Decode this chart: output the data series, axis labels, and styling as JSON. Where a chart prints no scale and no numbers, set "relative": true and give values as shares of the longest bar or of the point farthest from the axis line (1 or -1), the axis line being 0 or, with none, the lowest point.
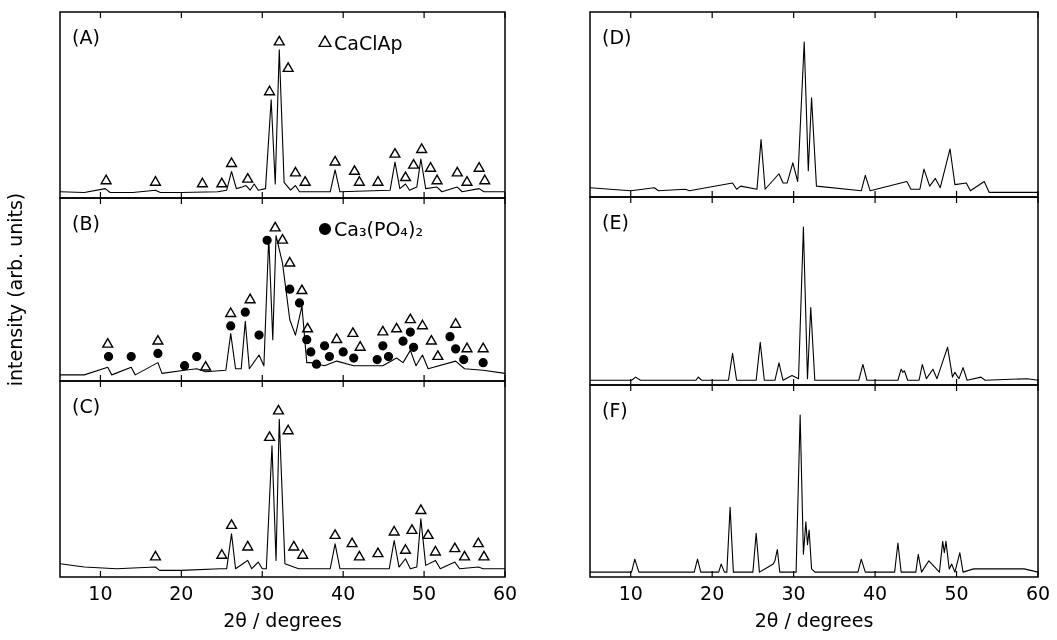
{
  "chart_data": [
    {
      "type": "line",
      "annotations": [
        "(A)"
      ],
      "xlim": [
        5,
        60
      ],
      "xticks": [
        10,
        20,
        30,
        40,
        50,
        60
      ],
      "tick_labels": false,
      "relative": true,
      "legend": "top right",
      "series": [
        {
          "type": "line",
          "color": "#000000",
          "x": [
            5,
            8,
            10.6,
            11.2,
            14,
            16.8,
            17.4,
            20,
            24.5,
            25.6,
            26.2,
            26.8,
            27.5,
            28.0,
            28.5,
            29.0,
            29.5,
            30.4,
            31.1,
            31.6,
            32.1,
            32.7,
            33.5,
            34.1,
            34.6,
            38.4,
            39.0,
            39.6,
            45.8,
            46.4,
            47.0,
            47.7,
            48.2,
            49.1,
            49.6,
            50.2,
            51.6,
            52.2,
            54.1,
            54.7,
            56.8,
            57.4,
            60
          ],
          "values": [
            0.04,
            0.035,
            0.06,
            0.035,
            0.035,
            0.05,
            0.035,
            0.035,
            0.04,
            0.05,
            0.17,
            0.06,
            0.07,
            0.08,
            0.05,
            0.09,
            0.05,
            0.06,
            0.63,
            0.09,
            0.95,
            0.1,
            0.05,
            0.08,
            0.04,
            0.04,
            0.18,
            0.04,
            0.05,
            0.23,
            0.06,
            0.09,
            0.05,
            0.07,
            0.25,
            0.06,
            0.07,
            0.04,
            0.07,
            0.04,
            0.06,
            0.04,
            0.04
          ]
        },
        {
          "type": "scatter",
          "name": "CaClAp",
          "marker": "triangle",
          "color": "#000000",
          "x": [
            10.7,
            16.8,
            22.6,
            25.0,
            26.2,
            28.2,
            30.9,
            32.1,
            33.2,
            34.1,
            35.3,
            39.0,
            41.4,
            42.0,
            44.3,
            46.4,
            47.7,
            48.7,
            49.7,
            50.8,
            51.6,
            54.1,
            55.3,
            56.8,
            57.5
          ],
          "values": [
            0.11,
            0.1,
            0.09,
            0.09,
            0.22,
            0.12,
            0.68,
            1.0,
            0.83,
            0.16,
            0.1,
            0.23,
            0.17,
            0.1,
            0.1,
            0.28,
            0.13,
            0.21,
            0.31,
            0.19,
            0.11,
            0.16,
            0.1,
            0.19,
            0.11
          ]
        }
      ]
    },
    {
      "type": "line",
      "annotations": [
        "(B)"
      ],
      "ylabel": "intensity (arb. units)",
      "xlim": [
        5,
        60
      ],
      "xticks": [
        10,
        20,
        30,
        40,
        50,
        60
      ],
      "tick_labels": false,
      "relative": true,
      "legend": "top right",
      "series": [
        {
          "type": "line",
          "color": "#000000",
          "x": [
            5,
            8,
            10.9,
            11.4,
            13.8,
            14.3,
            17.1,
            17.6,
            20.4,
            21.9,
            23,
            25.5,
            26.1,
            26.7,
            27.4,
            27.9,
            28.4,
            29.6,
            30.2,
            30.8,
            31.3,
            31.7,
            32.5,
            33.4,
            34.1,
            34.9,
            35.5,
            36.0,
            37.7,
            39.2,
            41.3,
            44.9,
            46.6,
            47.4,
            48.3,
            49.0,
            49.8,
            50.5,
            53.9,
            55,
            57.3,
            60
          ],
          "values": [
            0.04,
            0.04,
            0.09,
            0.04,
            0.09,
            0.04,
            0.12,
            0.05,
            0.07,
            0.08,
            0.06,
            0.07,
            0.31,
            0.08,
            0.08,
            0.39,
            0.08,
            0.17,
            0.1,
            0.94,
            0.27,
            0.95,
            0.77,
            0.4,
            0.3,
            0.49,
            0.12,
            0.12,
            0.1,
            0.13,
            0.1,
            0.1,
            0.15,
            0.12,
            0.2,
            0.1,
            0.17,
            0.08,
            0.13,
            0.08,
            0.07,
            0.05
          ]
        },
        {
          "type": "scatter",
          "marker": "triangle",
          "color": "#000000",
          "x": [
            10.9,
            17.1,
            23.0,
            26.1,
            28.5,
            31.6,
            32.5,
            33.4,
            34.9,
            35.6,
            39.2,
            41.2,
            42.1,
            44.9,
            46.6,
            48.3,
            49.8,
            50.9,
            51.7,
            53.9,
            55.3,
            57.3
          ],
          "values": [
            0.24,
            0.26,
            0.09,
            0.44,
            0.53,
            1.0,
            0.92,
            0.77,
            0.59,
            0.34,
            0.27,
            0.31,
            0.22,
            0.32,
            0.34,
            0.4,
            0.36,
            0.26,
            0.16,
            0.37,
            0.21,
            0.21
          ]
        },
        {
          "type": "scatter",
          "name": "Ca₃(PO₄)₂",
          "marker": "circle",
          "color": "#000000",
          "x": [
            11.0,
            13.8,
            17.1,
            20.4,
            21.9,
            26.1,
            27.9,
            29.6,
            30.6,
            33.4,
            34.6,
            35.5,
            36.0,
            36.7,
            37.7,
            38.3,
            40.0,
            41.3,
            44.2,
            44.9,
            45.6,
            47.4,
            48.3,
            48.7,
            53.2,
            53.9,
            54.9,
            57.3
          ],
          "values": [
            0.16,
            0.16,
            0.18,
            0.1,
            0.16,
            0.36,
            0.45,
            0.3,
            0.92,
            0.6,
            0.51,
            0.27,
            0.19,
            0.11,
            0.23,
            0.16,
            0.19,
            0.15,
            0.14,
            0.23,
            0.16,
            0.26,
            0.32,
            0.22,
            0.29,
            0.21,
            0.14,
            0.12
          ]
        }
      ]
    },
    {
      "type": "line",
      "annotations": [
        "(C)"
      ],
      "xlabel": "2θ / degrees",
      "xlim": [
        5,
        60
      ],
      "xticks": [
        10,
        20,
        30,
        40,
        50,
        60
      ],
      "tick_labels": "x",
      "relative": true,
      "series": [
        {
          "type": "line",
          "color": "#000000",
          "x": [
            5,
            8,
            12,
            16.8,
            17.3,
            20,
            24.8,
            25.6,
            26.2,
            26.7,
            27.6,
            28.2,
            28.7,
            29.5,
            30.0,
            30.5,
            31.2,
            31.7,
            32.1,
            32.8,
            33.9,
            34.5,
            38.4,
            39.0,
            39.6,
            45.7,
            46.3,
            46.9,
            47.7,
            48.3,
            49.1,
            49.6,
            50.2,
            51.4,
            52,
            53.8,
            54.4,
            56.7,
            57.3,
            60
          ],
          "values": [
            0.08,
            0.06,
            0.05,
            0.06,
            0.04,
            0.04,
            0.05,
            0.05,
            0.26,
            0.05,
            0.08,
            0.1,
            0.05,
            0.09,
            0.05,
            0.05,
            0.79,
            0.1,
            0.95,
            0.08,
            0.06,
            0.05,
            0.05,
            0.2,
            0.05,
            0.05,
            0.22,
            0.06,
            0.11,
            0.05,
            0.06,
            0.35,
            0.07,
            0.1,
            0.05,
            0.09,
            0.05,
            0.06,
            0.05,
            0.05
          ]
        },
        {
          "type": "scatter",
          "marker": "triangle",
          "color": "#000000",
          "x": [
            16.8,
            25.0,
            26.2,
            28.2,
            30.9,
            32.0,
            33.2,
            33.9,
            35.0,
            39.0,
            41.1,
            42.0,
            44.3,
            46.3,
            47.7,
            48.5,
            49.6,
            50.5,
            51.4,
            53.8,
            55.0,
            56.7,
            57.4
          ],
          "values": [
            0.12,
            0.13,
            0.31,
            0.18,
            0.84,
            1.0,
            0.88,
            0.18,
            0.13,
            0.25,
            0.2,
            0.12,
            0.14,
            0.27,
            0.16,
            0.28,
            0.4,
            0.25,
            0.15,
            0.17,
            0.12,
            0.2,
            0.12
          ]
        }
      ]
    },
    {
      "type": "line",
      "annotations": [
        "(D)"
      ],
      "xlim": [
        5,
        60
      ],
      "xticks": [
        10,
        20,
        30,
        40,
        50,
        60
      ],
      "tick_labels": false,
      "relative": true,
      "series": [
        {
          "type": "line",
          "color": "#000000",
          "x": [
            5,
            10,
            12.9,
            13.4,
            16.7,
            17.2,
            22.5,
            23.0,
            23.5,
            25.5,
            26.0,
            26.5,
            28.2,
            28.7,
            29.2,
            29.9,
            30.5,
            31.3,
            31.8,
            32.2,
            32.8,
            38.3,
            38.8,
            39.4,
            43.9,
            44.4,
            45.5,
            46.0,
            46.7,
            47.4,
            48.0,
            49.2,
            49.8,
            51.2,
            51.7,
            53.4,
            54.0,
            60
          ],
          "values": [
            0.06,
            0.04,
            0.06,
            0.04,
            0.05,
            0.04,
            0.09,
            0.05,
            0.07,
            0.05,
            0.37,
            0.05,
            0.15,
            0.09,
            0.09,
            0.22,
            0.1,
            1.0,
            0.17,
            0.64,
            0.07,
            0.04,
            0.14,
            0.04,
            0.1,
            0.05,
            0.05,
            0.18,
            0.07,
            0.12,
            0.06,
            0.31,
            0.08,
            0.09,
            0.04,
            0.1,
            0.03,
            0.03
          ]
        }
      ]
    },
    {
      "type": "line",
      "annotations": [
        "(E)"
      ],
      "xlim": [
        5,
        60
      ],
      "xticks": [
        10,
        20,
        30,
        40,
        50,
        60
      ],
      "tick_labels": false,
      "relative": true,
      "series": [
        {
          "type": "line",
          "color": "#000000",
          "x": [
            5,
            10.1,
            10.6,
            11.2,
            18.0,
            18.3,
            18.7,
            22.0,
            22.5,
            23.0,
            25.4,
            25.9,
            26.4,
            27.7,
            28.2,
            28.7,
            29.8,
            30.6,
            31.2,
            31.7,
            32.1,
            32.6,
            38.0,
            38.5,
            39.0,
            42.8,
            43.2,
            43.4,
            43.6,
            44.0,
            45.4,
            45.8,
            46.3,
            47.1,
            47.6,
            48.9,
            49.5,
            49.8,
            50.3,
            50.8,
            51.3,
            53.0,
            53.5,
            58.7,
            60
          ],
          "values": [
            0.03,
            0.03,
            0.05,
            0.03,
            0.03,
            0.05,
            0.03,
            0.03,
            0.2,
            0.03,
            0.03,
            0.27,
            0.03,
            0.03,
            0.14,
            0.03,
            0.06,
            0.04,
            1.0,
            0.04,
            0.49,
            0.03,
            0.03,
            0.13,
            0.03,
            0.03,
            0.1,
            0.08,
            0.09,
            0.03,
            0.03,
            0.13,
            0.04,
            0.1,
            0.04,
            0.24,
            0.05,
            0.08,
            0.04,
            0.11,
            0.03,
            0.05,
            0.03,
            0.04,
            0.03
          ]
        }
      ]
    },
    {
      "type": "line",
      "annotations": [
        "(F)"
      ],
      "xlabel": "2θ / degrees",
      "xlim": [
        5,
        60
      ],
      "xticks": [
        10,
        20,
        30,
        40,
        50,
        60
      ],
      "tick_labels": "x",
      "relative": true,
      "series": [
        {
          "type": "line",
          "color": "#000000",
          "x": [
            5,
            10.1,
            10.5,
            11.0,
            17.8,
            18.2,
            18.6,
            20.8,
            21.1,
            21.5,
            21.8,
            22.2,
            22.6,
            25.0,
            25.4,
            25.8,
            27.5,
            27.7,
            28.0,
            28.3,
            30.3,
            30.8,
            31.2,
            31.5,
            31.7,
            31.9,
            32.2,
            32.6,
            37.9,
            38.3,
            38.8,
            42.4,
            42.8,
            43.2,
            45.0,
            45.3,
            45.7,
            46.6,
            47.9,
            48.3,
            48.5,
            48.7,
            49.1,
            49.4,
            49.8,
            50.4,
            50.8,
            52.1,
            58.3,
            60
          ],
          "values": [
            0.03,
            0.03,
            0.11,
            0.03,
            0.03,
            0.11,
            0.03,
            0.03,
            0.08,
            0.03,
            0.03,
            0.43,
            0.03,
            0.03,
            0.27,
            0.03,
            0.08,
            0.1,
            0.17,
            0.03,
            0.03,
            1.0,
            0.14,
            0.34,
            0.2,
            0.29,
            0.05,
            0.03,
            0.03,
            0.11,
            0.03,
            0.03,
            0.21,
            0.03,
            0.03,
            0.14,
            0.03,
            0.1,
            0.03,
            0.22,
            0.15,
            0.22,
            0.05,
            0.08,
            0.03,
            0.15,
            0.03,
            0.05,
            0.05,
            0.03
          ]
        }
      ]
    }
  ]
}
